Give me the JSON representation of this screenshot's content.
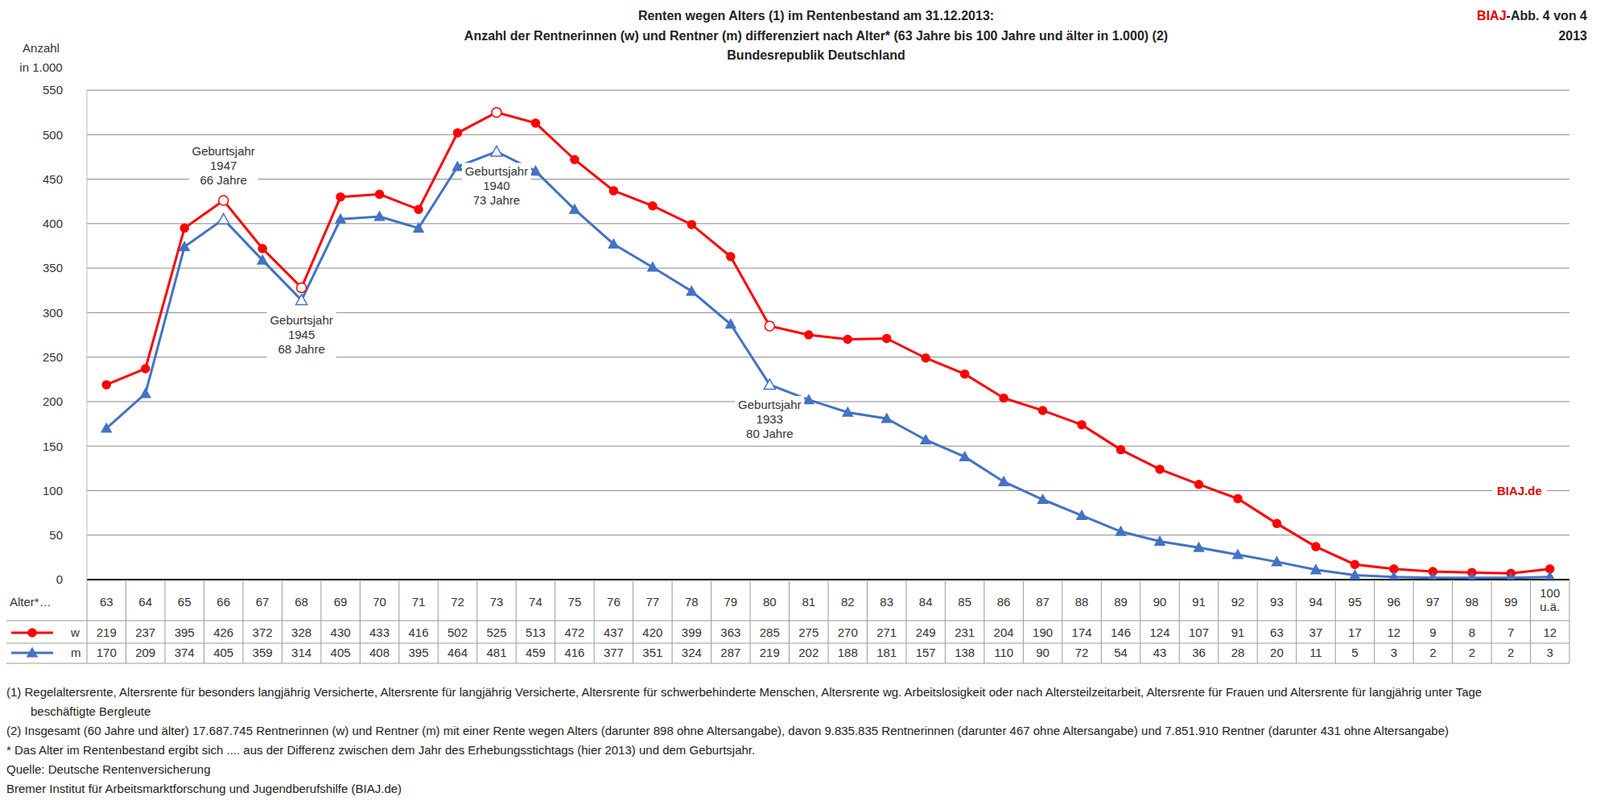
{
  "chart_data": {
    "type": "line",
    "title": [
      "Renten wegen Alters (1) im Rentenbestand am 31.12.2013:",
      "Anzahl der Rentnerinnen (w) und Rentner (m) differenziert nach Alter* (63 Jahre bis 100 Jahre und älter in 1.000) (2)",
      "Bundesrepublik Deutschland"
    ],
    "figure_label": "BIAJ-Abb. 4 von 4",
    "year_label": "2013",
    "y_label": [
      "Anzahl",
      "in 1.000"
    ],
    "x_label": "Alter*…",
    "categories": [
      "63",
      "64",
      "65",
      "66",
      "67",
      "68",
      "69",
      "70",
      "71",
      "72",
      "73",
      "74",
      "75",
      "76",
      "77",
      "78",
      "79",
      "80",
      "81",
      "82",
      "83",
      "84",
      "85",
      "86",
      "87",
      "88",
      "89",
      "90",
      "91",
      "92",
      "93",
      "94",
      "95",
      "96",
      "97",
      "98",
      "99",
      "100 u.ä."
    ],
    "series": [
      {
        "name": "w",
        "color": "#ff0000",
        "marker": "circle",
        "values": [
          219,
          237,
          395,
          426,
          372,
          328,
          430,
          433,
          416,
          502,
          525,
          513,
          472,
          437,
          420,
          399,
          363,
          285,
          275,
          270,
          271,
          249,
          231,
          204,
          190,
          174,
          146,
          124,
          107,
          91,
          63,
          37,
          17,
          12,
          9,
          8,
          7,
          12
        ]
      },
      {
        "name": "m",
        "color": "#4472c4",
        "marker": "triangle",
        "values": [
          170,
          209,
          374,
          405,
          359,
          314,
          405,
          408,
          395,
          464,
          481,
          459,
          416,
          377,
          351,
          324,
          287,
          219,
          202,
          188,
          181,
          157,
          138,
          110,
          90,
          72,
          54,
          43,
          36,
          28,
          20,
          11,
          5,
          3,
          2,
          2,
          2,
          3
        ]
      }
    ],
    "ylim": [
      0,
      550
    ],
    "yticks": [
      0,
      50,
      100,
      150,
      200,
      250,
      300,
      350,
      400,
      450,
      500,
      550
    ],
    "grid": true,
    "annotations": [
      {
        "x": "66",
        "text": [
          "Geburtsjahr",
          "1947",
          "66 Jahre"
        ]
      },
      {
        "x": "68",
        "text": [
          "Geburtsjahr",
          "1945",
          "68 Jahre"
        ]
      },
      {
        "x": "73",
        "text": [
          "Geburtsjahr",
          "1940",
          "73 Jahre"
        ]
      },
      {
        "x": "80",
        "text": [
          "Geburtsjahr",
          "1933",
          "80 Jahre"
        ]
      }
    ],
    "watermark": "BIAJ.de",
    "footnotes": [
      [
        "(1) Regelaltersrente, Altersrente für besonders langjährig Versicherte, Altersrente für langjährig Versicherte, Altersrente für schwerbehinderte Menschen, Altersrente wg. Arbeitslosigkeit oder nach Altersteilzeitarbeit, Altersrente für Frauen und Altersrente für langjährig unter Tage",
        "beschäftigte Bergleute"
      ],
      [
        "(2) Insgesamt (60 Jahre und älter) 17.687.745 Rentnerinnen (w) und Rentner (m) mit einer Rente wegen Alters (darunter 898 ohne Altersangabe), davon 9.835.835 Rentnerinnen (darunter 467 ohne Altersangabe) und 7.851.910 Rentner (darunter 431 ohne Altersangabe)"
      ],
      [
        "* Das Alter im Rentenbestand ergibt sich .... aus der Differenz zwischen dem Jahr des Erhebungsstichtags (hier 2013) und dem Geburtsjahr."
      ],
      [
        "Quelle: Deutsche Rentenversicherung"
      ],
      [
        "Bremer Institut für Arbeitsmarktforschung und Jugendberufshilfe (BIAJ.de)"
      ]
    ]
  }
}
